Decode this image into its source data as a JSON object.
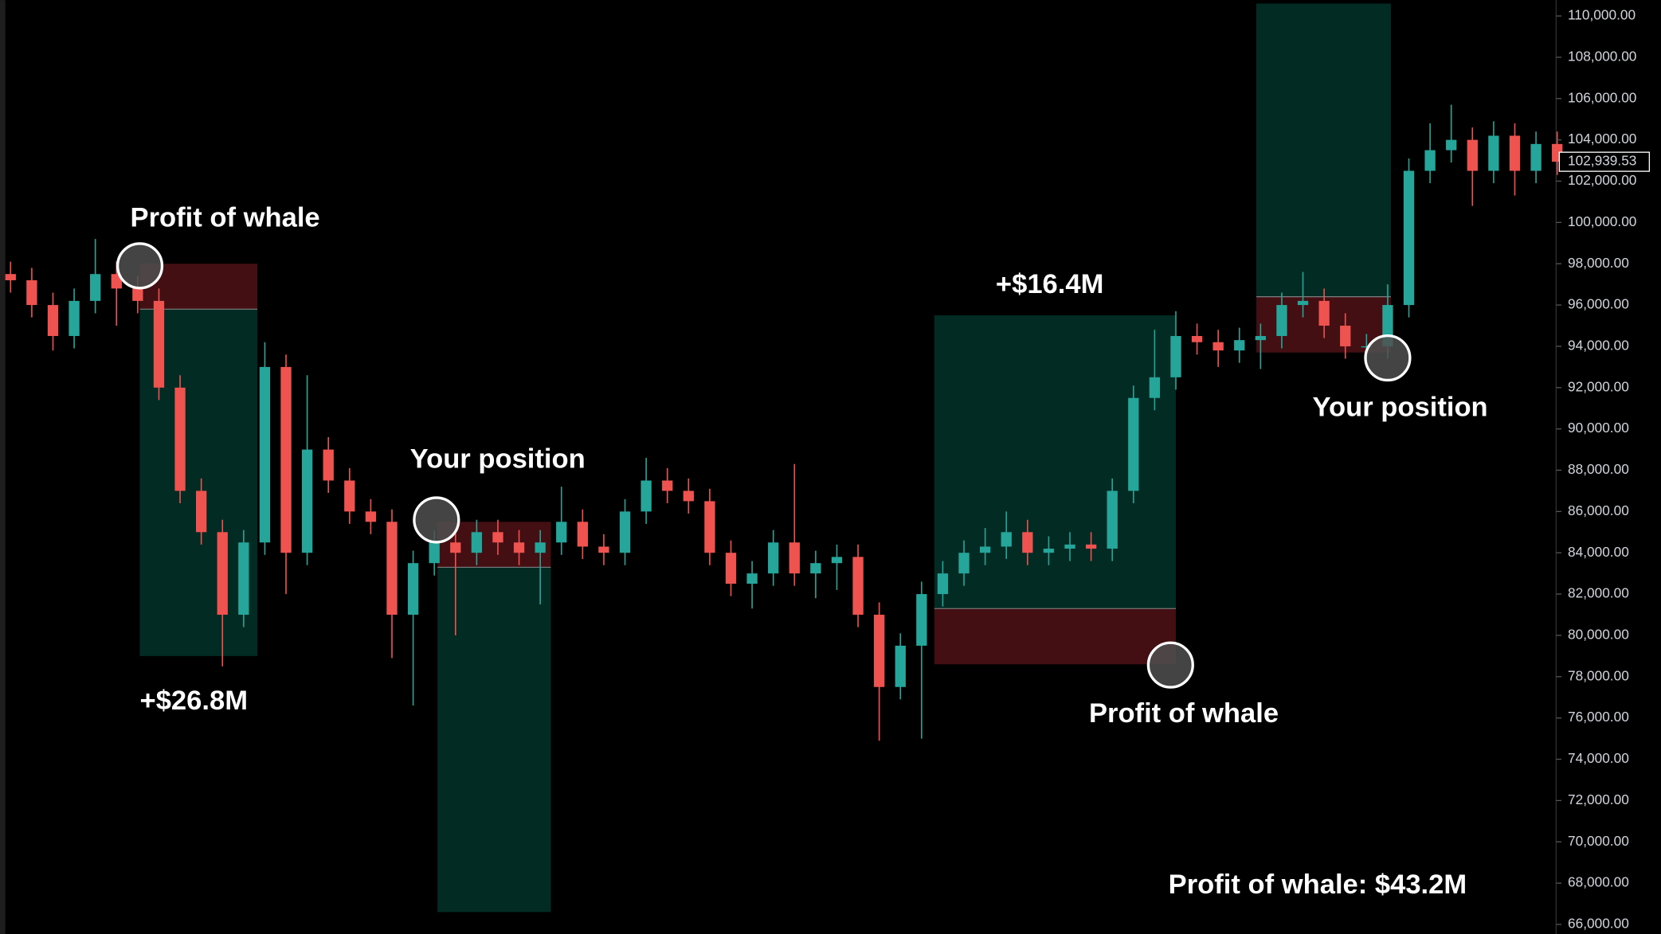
{
  "chart_data": {
    "type": "candlestick",
    "ylim": [
      65540,
      110770
    ],
    "yticks": [
      {
        "value": 66000,
        "label": "66,000.00"
      },
      {
        "value": 68000,
        "label": "68,000.00"
      },
      {
        "value": 70000,
        "label": "70,000.00"
      },
      {
        "value": 72000,
        "label": "72,000.00"
      },
      {
        "value": 74000,
        "label": "74,000.00"
      },
      {
        "value": 76000,
        "label": "76,000.00"
      },
      {
        "value": 78000,
        "label": "78,000.00"
      },
      {
        "value": 80000,
        "label": "80,000.00"
      },
      {
        "value": 82000,
        "label": "82,000.00"
      },
      {
        "value": 84000,
        "label": "84,000.00"
      },
      {
        "value": 86000,
        "label": "86,000.00"
      },
      {
        "value": 88000,
        "label": "88,000.00"
      },
      {
        "value": 90000,
        "label": "90,000.00"
      },
      {
        "value": 92000,
        "label": "92,000.00"
      },
      {
        "value": 94000,
        "label": "94,000.00"
      },
      {
        "value": 96000,
        "label": "96,000.00"
      },
      {
        "value": 98000,
        "label": "98,000.00"
      },
      {
        "value": 100000,
        "label": "100,000.00"
      },
      {
        "value": 102000,
        "label": "102,000.00"
      },
      {
        "value": 104000,
        "label": "104,000.00"
      },
      {
        "value": 106000,
        "label": "106,000.00"
      },
      {
        "value": 108000,
        "label": "108,000.00"
      },
      {
        "value": 110000,
        "label": "110,000.00"
      }
    ],
    "up_color": "#26a69a",
    "down_color": "#ef5350",
    "open": [
      97500,
      97200,
      96000,
      94500,
      96200,
      97500,
      96800,
      96200,
      92000,
      87000,
      85000,
      81000,
      84500,
      93000,
      84000,
      89000,
      87500,
      86000,
      85500,
      81000,
      83500,
      84500,
      84000,
      85000,
      84500,
      84000,
      84500,
      85500,
      84300,
      84000,
      86000,
      87500,
      87000,
      86500,
      84000,
      82500,
      83000,
      84500,
      83000,
      83500,
      83800,
      81000,
      77500,
      79500,
      82000,
      83000,
      84000,
      84300,
      85000,
      84000,
      84200,
      84400,
      84200,
      87000,
      91500,
      92500,
      94500,
      94200,
      93800,
      94300,
      94500,
      96000,
      96200,
      95000,
      94000,
      94000,
      96000,
      102500,
      103500,
      104000,
      102500,
      104200,
      102500,
      103800
    ],
    "high": [
      98100,
      97800,
      96600,
      96800,
      99200,
      98100,
      97400,
      96800,
      92600,
      87600,
      85600,
      85100,
      94200,
      93600,
      92600,
      89600,
      88100,
      86600,
      86100,
      84100,
      85100,
      85100,
      85600,
      85600,
      85100,
      85100,
      87200,
      86100,
      84900,
      86600,
      88600,
      88100,
      87600,
      87100,
      84600,
      83600,
      85100,
      88300,
      84100,
      84400,
      84400,
      81600,
      80100,
      82600,
      83600,
      84600,
      85200,
      86000,
      85600,
      84800,
      85000,
      85000,
      87600,
      92100,
      94800,
      95700,
      95100,
      94800,
      94900,
      95100,
      96600,
      97600,
      96800,
      95600,
      94600,
      97000,
      103100,
      104800,
      105700,
      104600,
      104900,
      104800,
      104400,
      104400
    ],
    "low": [
      96600,
      95400,
      93800,
      93900,
      95600,
      95000,
      95600,
      91400,
      86400,
      84400,
      78500,
      80400,
      83900,
      82000,
      83400,
      86900,
      85400,
      84900,
      78900,
      76600,
      82900,
      80000,
      83400,
      83900,
      83400,
      81500,
      83900,
      83700,
      83400,
      83400,
      85400,
      86400,
      85900,
      83400,
      81900,
      81300,
      82400,
      82400,
      81800,
      82200,
      80400,
      74900,
      76900,
      75000,
      81400,
      82400,
      83400,
      83700,
      83400,
      83400,
      83600,
      83600,
      83600,
      86400,
      90900,
      91900,
      93600,
      93000,
      93200,
      92900,
      93900,
      95400,
      94400,
      93400,
      93400,
      93400,
      95400,
      101900,
      102900,
      100800,
      101900,
      101300,
      101900,
      102300
    ],
    "close": [
      97200,
      96000,
      94500,
      96200,
      97500,
      96800,
      96200,
      92000,
      87000,
      85000,
      81000,
      84500,
      93000,
      84000,
      89000,
      87500,
      86000,
      85500,
      81000,
      83500,
      84500,
      84000,
      85000,
      84500,
      84000,
      84500,
      85500,
      84300,
      84000,
      86000,
      87500,
      87000,
      86500,
      84000,
      82500,
      83000,
      84500,
      83000,
      83500,
      83800,
      81000,
      77500,
      79500,
      82000,
      83000,
      84000,
      84300,
      85000,
      84000,
      84200,
      84400,
      84200,
      87000,
      91500,
      92500,
      94500,
      94200,
      93800,
      94300,
      94500,
      96000,
      96200,
      95000,
      94000,
      94000,
      96000,
      102500,
      103500,
      104000,
      102500,
      104200,
      102500,
      103800,
      102940
    ],
    "last_price": {
      "value": 102939.53,
      "label": "102,939.53"
    },
    "positions": [
      {
        "name": "Profit of whale",
        "entry": 95800,
        "stop": 98000,
        "target": 79000,
        "result": "+$26.8M"
      },
      {
        "name": "Your position",
        "entry": 83300,
        "stop": 85500,
        "target": 66600
      },
      {
        "name": "Profit of whale",
        "entry": 81300,
        "stop": 78600,
        "target": 95500,
        "result": "+$16.4M"
      },
      {
        "name": "Your position",
        "entry": 96400,
        "stop": 93700,
        "target": 110600
      }
    ],
    "summary": "Profit of whale: $43.2M"
  }
}
